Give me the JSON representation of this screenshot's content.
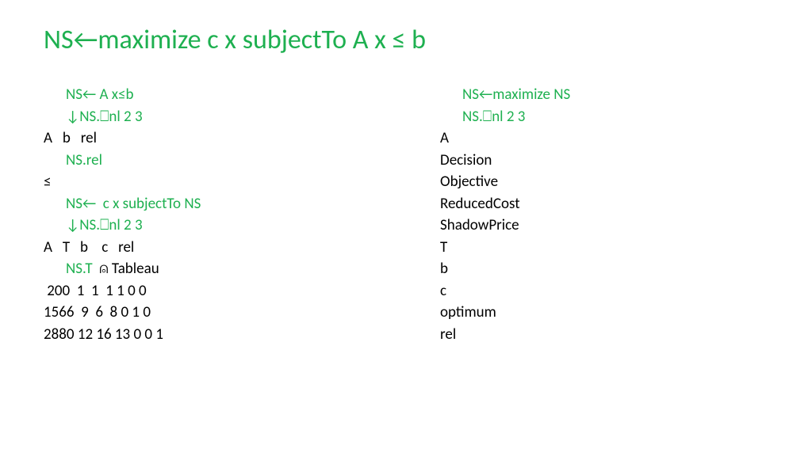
{
  "colors": {
    "accent": "#1eb050",
    "text": "#000000",
    "background": "#ffffff"
  },
  "typography": {
    "title_fontsize": 34,
    "body_fontsize": 19,
    "font_family": "Calibri"
  },
  "title": "NS←maximize c x subjectTo A x ≤ b",
  "left": {
    "l1": "NS← A x≤b",
    "l2": "↓NS.⎕nl 2 3",
    "l3": "A   b   rel",
    "l4": "NS.rel",
    "l5": "≤",
    "l6": "NS←  c x subjectTo NS",
    "l7": "↓NS.⎕nl 2 3",
    "l8": "A   T   b    c   rel",
    "l9a": "NS.T",
    "l9b": "  ⍝ Tableau",
    "l10": " 200  1  1  1 1 0 0",
    "l11": "1566  9  6  8 0 1 0",
    "l12": "2880 12 16 13 0 0 1"
  },
  "right": {
    "r1": "NS←maximize NS",
    "r2": "NS.⎕nl 2 3",
    "r3": "A",
    "r4": "Decision",
    "r5": "Objective",
    "r6": "ReducedCost",
    "r7": "ShadowPrice",
    "r8": "T",
    "r9": "b",
    "r10": "c",
    "r11": "optimum",
    "r12": "rel"
  }
}
